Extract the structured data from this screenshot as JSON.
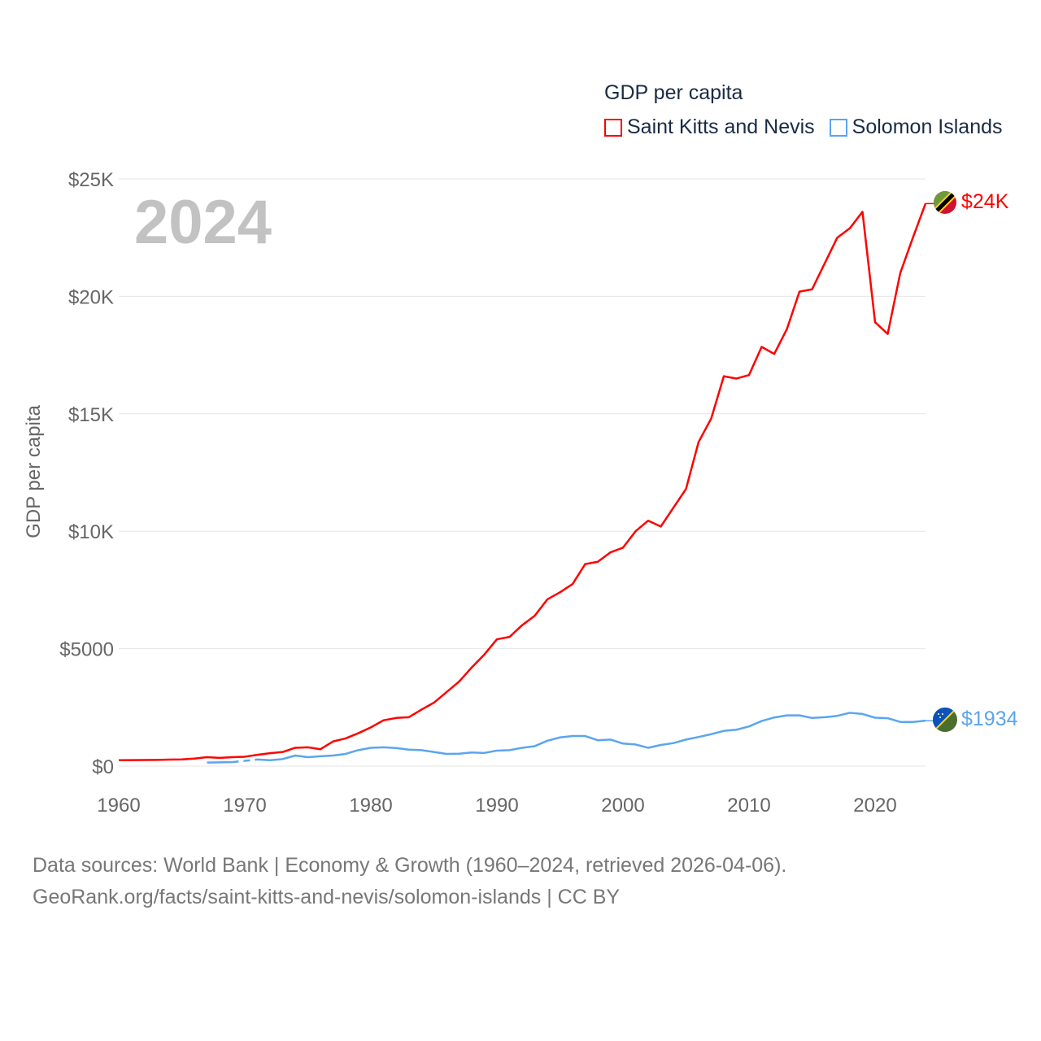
{
  "legend": {
    "title": "GDP per capita",
    "items": [
      {
        "label": "Saint Kitts and Nevis",
        "color": "#ff0000"
      },
      {
        "label": "Solomon Islands",
        "color": "#5aa5f0"
      }
    ]
  },
  "year_display": "2024",
  "end_labels": {
    "skn": "$24K",
    "slb": "$1934"
  },
  "footer": {
    "line1": "Data sources: World Bank | Economy & Growth (1960–2024, retrieved 2026-04-06).",
    "line2": "GeoRank.org/facts/saint-kitts-and-nevis/solomon-islands | CC BY"
  },
  "chart_data": {
    "type": "line",
    "title": "GDP per capita",
    "xlabel": "",
    "ylabel": "GDP per capita",
    "xlim": [
      1960,
      2024
    ],
    "ylim": [
      0,
      25000
    ],
    "grid": true,
    "legend_position": "top-right",
    "x_ticks": [
      1960,
      1970,
      1980,
      1990,
      2000,
      2010,
      2020
    ],
    "x_tick_labels": [
      "1960",
      "1970",
      "1980",
      "1990",
      "2000",
      "2010",
      "2020"
    ],
    "y_ticks": [
      0,
      5000,
      10000,
      15000,
      20000,
      25000
    ],
    "y_tick_labels": [
      "$0",
      "$5000",
      "$10K",
      "$15K",
      "$20K",
      "$25K"
    ],
    "x_start": 1960,
    "series": [
      {
        "name": "Saint Kitts and Nevis",
        "color": "#ff0000",
        "values": [
          250,
          255,
          260,
          265,
          275,
          285,
          320,
          380,
          350,
          380,
          400,
          480,
          550,
          600,
          780,
          800,
          720,
          1050,
          1180,
          1400,
          1650,
          1950,
          2050,
          2080,
          2400,
          2700,
          3150,
          3600,
          4200,
          4750,
          5400,
          5500,
          6000,
          6400,
          7100,
          7400,
          7750,
          8600,
          8700,
          9100,
          9300,
          10000,
          10450,
          10200,
          11000,
          11800,
          13800,
          14800,
          16600,
          16500,
          16650,
          17850,
          17550,
          18600,
          20200,
          20300,
          21400,
          22500,
          22900,
          23600,
          18900,
          18400,
          21000,
          22500,
          23950
        ]
      },
      {
        "name": "Solomon Islands",
        "color": "#5aa5f0",
        "values": [
          null,
          null,
          null,
          null,
          null,
          null,
          null,
          150,
          160,
          170,
          null,
          280,
          250,
          300,
          450,
          380,
          420,
          450,
          520,
          680,
          780,
          800,
          770,
          700,
          680,
          600,
          520,
          530,
          580,
          560,
          660,
          680,
          780,
          850,
          1080,
          1220,
          1280,
          1280,
          1100,
          1130,
          960,
          920,
          780,
          900,
          980,
          1130,
          1240,
          1360,
          1500,
          1550,
          1690,
          1920,
          2070,
          2160,
          2160,
          2050,
          2080,
          2140,
          2270,
          2220,
          2060,
          2040,
          1880,
          1880,
          1934
        ]
      }
    ]
  }
}
